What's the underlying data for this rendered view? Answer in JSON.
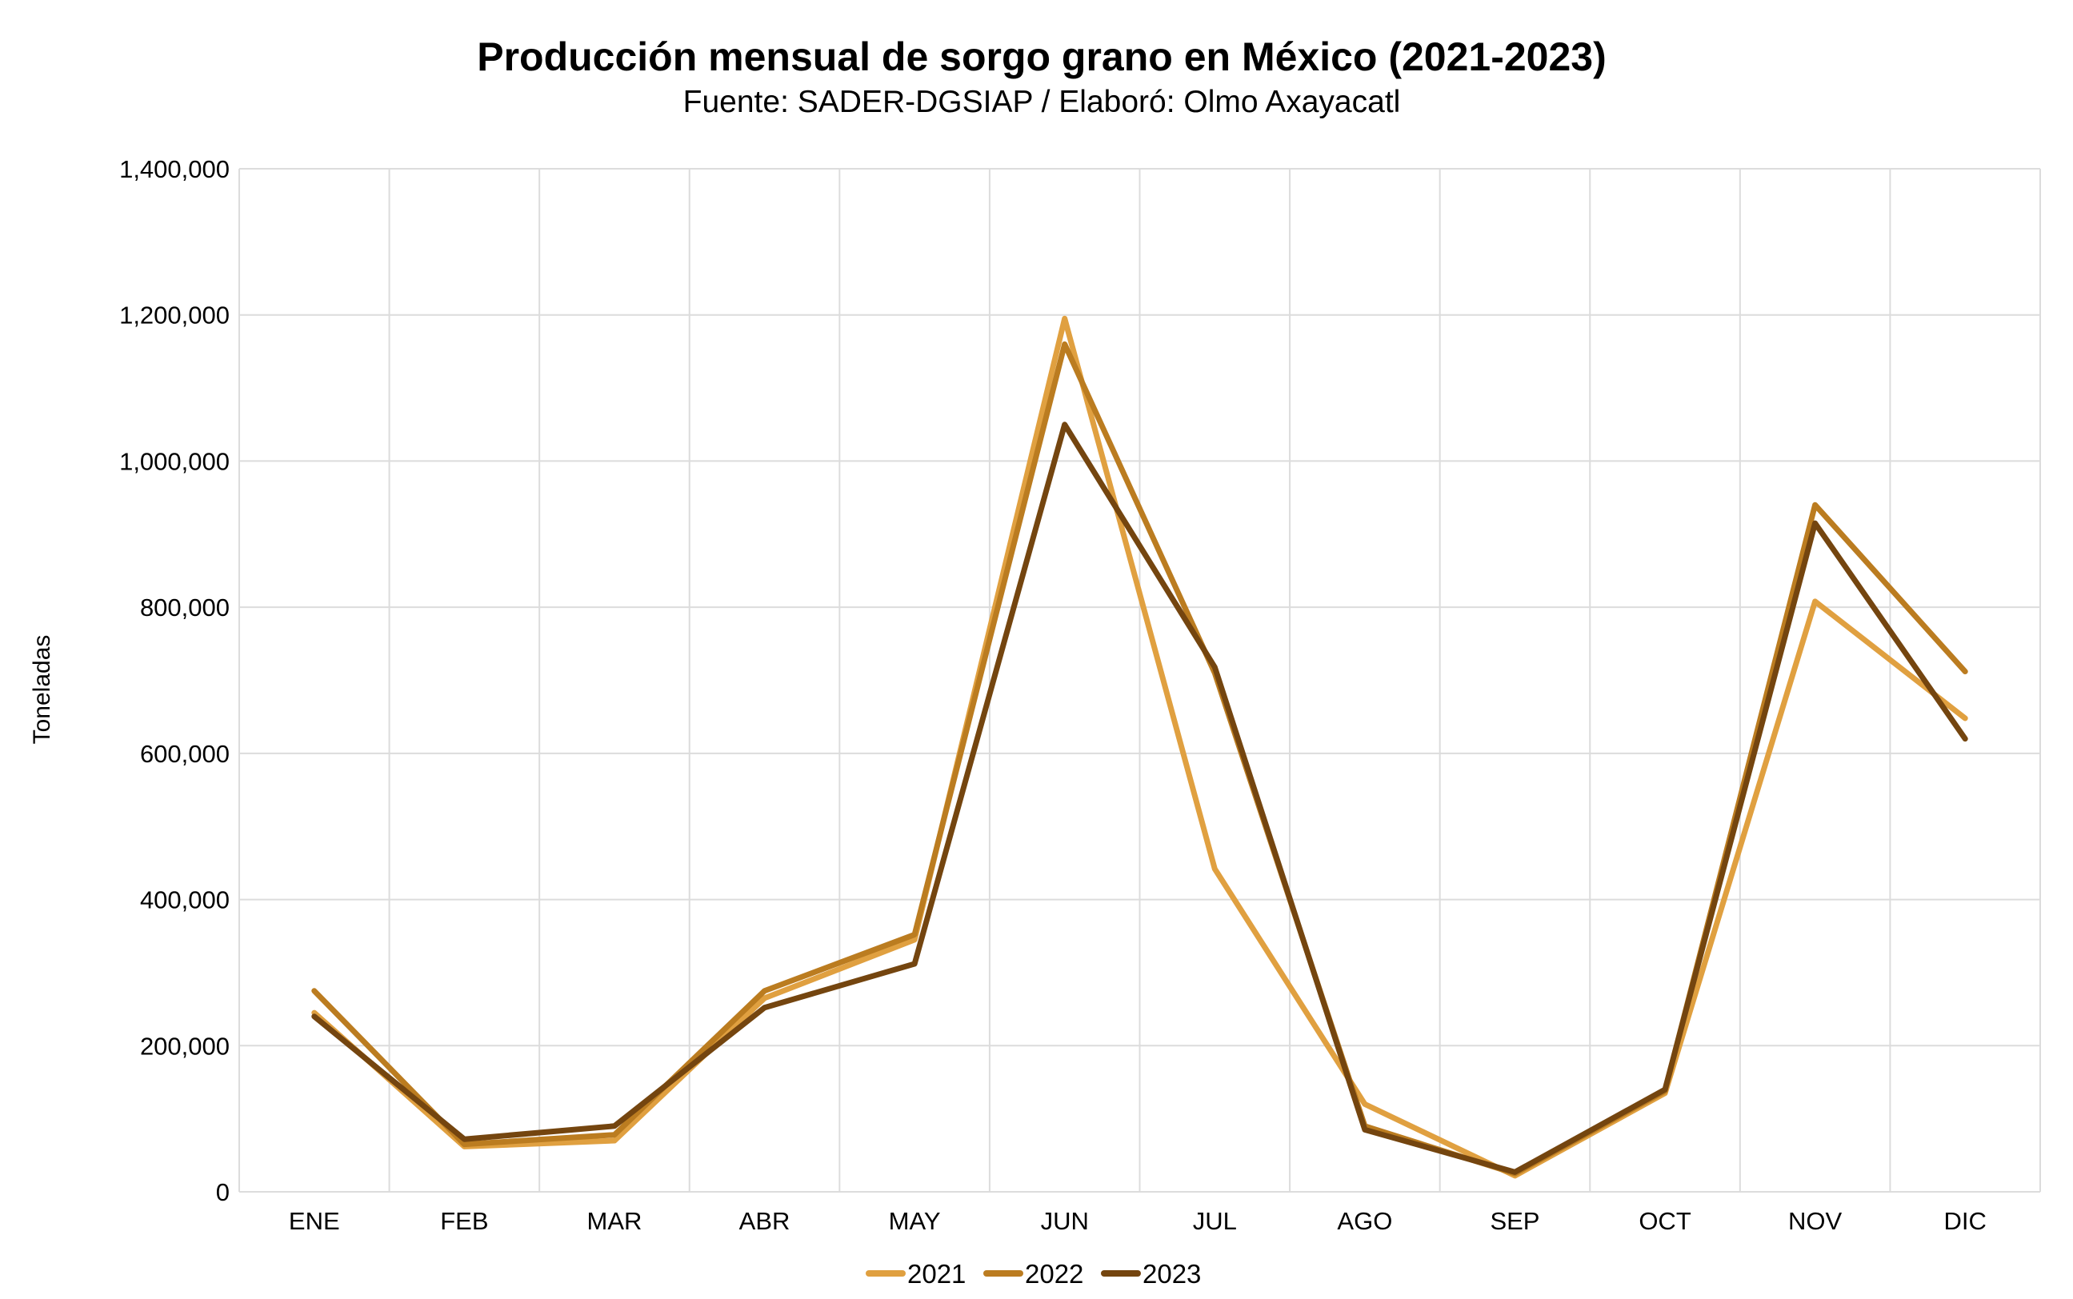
{
  "chart_data": {
    "type": "line",
    "title": "Producción mensual de sorgo grano en México (2021-2023)",
    "subtitle": "Fuente: SADER-DGSIAP / Elaboró: Olmo Axayacatl",
    "xlabel": "",
    "ylabel": "Toneladas",
    "ylim": [
      0,
      1400000
    ],
    "yticks": [
      0,
      200000,
      400000,
      600000,
      800000,
      1000000,
      1200000,
      1400000
    ],
    "ytick_labels": [
      "0",
      "200,000",
      "400,000",
      "600,000",
      "800,000",
      "1,000,000",
      "1,200,000",
      "1,400,000"
    ],
    "categories": [
      "ENE",
      "FEB",
      "MAR",
      "ABR",
      "MAY",
      "JUN",
      "JUL",
      "AGO",
      "SEP",
      "OCT",
      "NOV",
      "DIC"
    ],
    "grid": true,
    "legend_position": "bottom",
    "series": [
      {
        "name": "2021",
        "color": "#E0A040",
        "values": [
          245000,
          62000,
          70000,
          265000,
          345000,
          1195000,
          442000,
          120000,
          22000,
          135000,
          808000,
          648000
        ]
      },
      {
        "name": "2022",
        "color": "#BB7C20",
        "values": [
          275000,
          65000,
          78000,
          275000,
          352000,
          1160000,
          710000,
          90000,
          25000,
          138000,
          940000,
          712000
        ]
      },
      {
        "name": "2023",
        "color": "#74450F",
        "values": [
          240000,
          72000,
          90000,
          252000,
          312000,
          1050000,
          718000,
          85000,
          27000,
          140000,
          915000,
          620000
        ]
      }
    ]
  }
}
